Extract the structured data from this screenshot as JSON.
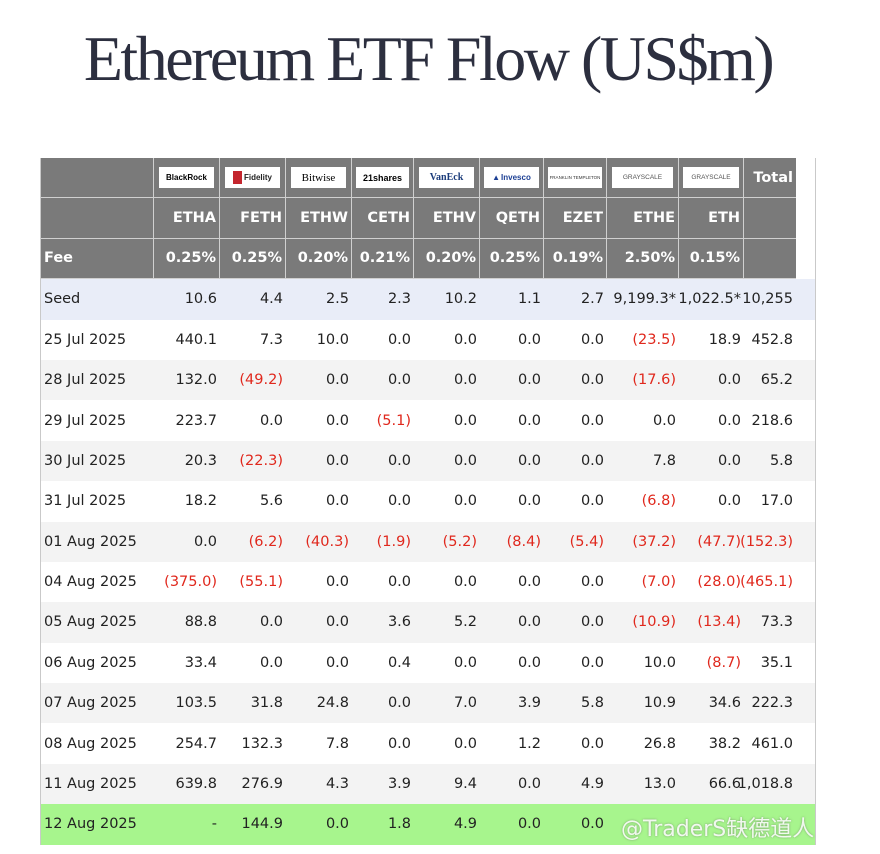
{
  "title": "Ethereum ETF Flow (US$m)",
  "issuers": [
    {
      "name": "BlackRock"
    },
    {
      "name": "Fidelity"
    },
    {
      "name": "Bitwise"
    },
    {
      "name": "21shares"
    },
    {
      "name": "VanEck"
    },
    {
      "name": "Invesco"
    },
    {
      "name": "FRANKLIN TEMPLETON"
    },
    {
      "name": "GRAYSCALE"
    },
    {
      "name": "GRAYSCALE"
    }
  ],
  "total_label": "Total",
  "tickers": [
    "ETHA",
    "FETH",
    "ETHW",
    "CETH",
    "ETHV",
    "QETH",
    "EZET",
    "ETHE",
    "ETH"
  ],
  "fee_label": "Fee",
  "fees": [
    "0.25%",
    "0.25%",
    "0.20%",
    "0.21%",
    "0.20%",
    "0.25%",
    "0.19%",
    "2.50%",
    "0.15%"
  ],
  "rows": [
    {
      "label": "Seed",
      "values": [
        "10.6",
        "4.4",
        "2.5",
        "2.3",
        "10.2",
        "1.1",
        "2.7",
        "9,199.3*",
        "1,022.5*",
        "10,255"
      ]
    },
    {
      "label": "25 Jul 2025",
      "values": [
        "440.1",
        "7.3",
        "10.0",
        "0.0",
        "0.0",
        "0.0",
        "0.0",
        "(23.5)",
        "18.9",
        "452.8"
      ]
    },
    {
      "label": "28 Jul 2025",
      "values": [
        "132.0",
        "(49.2)",
        "0.0",
        "0.0",
        "0.0",
        "0.0",
        "0.0",
        "(17.6)",
        "0.0",
        "65.2"
      ]
    },
    {
      "label": "29 Jul 2025",
      "values": [
        "223.7",
        "0.0",
        "0.0",
        "(5.1)",
        "0.0",
        "0.0",
        "0.0",
        "0.0",
        "0.0",
        "218.6"
      ]
    },
    {
      "label": "30 Jul 2025",
      "values": [
        "20.3",
        "(22.3)",
        "0.0",
        "0.0",
        "0.0",
        "0.0",
        "0.0",
        "7.8",
        "0.0",
        "5.8"
      ]
    },
    {
      "label": "31 Jul 2025",
      "values": [
        "18.2",
        "5.6",
        "0.0",
        "0.0",
        "0.0",
        "0.0",
        "0.0",
        "(6.8)",
        "0.0",
        "17.0"
      ]
    },
    {
      "label": "01 Aug 2025",
      "values": [
        "0.0",
        "(6.2)",
        "(40.3)",
        "(1.9)",
        "(5.2)",
        "(8.4)",
        "(5.4)",
        "(37.2)",
        "(47.7)",
        "(152.3)"
      ]
    },
    {
      "label": "04 Aug 2025",
      "values": [
        "(375.0)",
        "(55.1)",
        "0.0",
        "0.0",
        "0.0",
        "0.0",
        "0.0",
        "(7.0)",
        "(28.0)",
        "(465.1)"
      ]
    },
    {
      "label": "05 Aug 2025",
      "values": [
        "88.8",
        "0.0",
        "0.0",
        "3.6",
        "5.2",
        "0.0",
        "0.0",
        "(10.9)",
        "(13.4)",
        "73.3"
      ]
    },
    {
      "label": "06 Aug 2025",
      "values": [
        "33.4",
        "0.0",
        "0.0",
        "0.4",
        "0.0",
        "0.0",
        "0.0",
        "10.0",
        "(8.7)",
        "35.1"
      ]
    },
    {
      "label": "07 Aug 2025",
      "values": [
        "103.5",
        "31.8",
        "24.8",
        "0.0",
        "7.0",
        "3.9",
        "5.8",
        "10.9",
        "34.6",
        "222.3"
      ]
    },
    {
      "label": "08 Aug 2025",
      "values": [
        "254.7",
        "132.3",
        "7.8",
        "0.0",
        "0.0",
        "1.2",
        "0.0",
        "26.8",
        "38.2",
        "461.0"
      ]
    },
    {
      "label": "11 Aug 2025",
      "values": [
        "639.8",
        "276.9",
        "4.3",
        "3.9",
        "9.4",
        "0.0",
        "4.9",
        "13.0",
        "66.6",
        "1,018.8"
      ]
    },
    {
      "label": "12 Aug 2025",
      "values": [
        "-",
        "144.9",
        "0.0",
        "1.8",
        "4.9",
        "0.0",
        "0.0",
        "",
        ""
      ]
    }
  ],
  "watermark": "@TraderS缺德道人",
  "colors": {
    "header_bg": "#7a7a7a",
    "negative": "#e0281d",
    "seed_bg": "#e9edf8",
    "highlight_bg": "#a7f58d",
    "stripe_bg": "#f3f3f3"
  }
}
